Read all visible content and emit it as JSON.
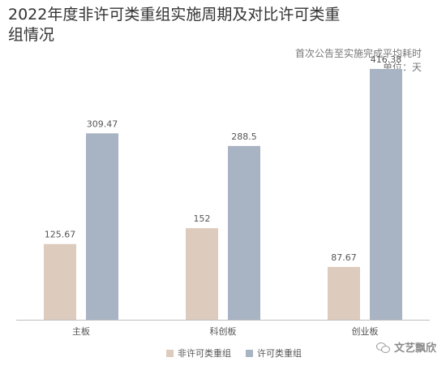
{
  "chart_data": {
    "type": "bar",
    "title": "2022年度非许可类重组实施周期及对比许可类重组情况",
    "subtitle": "首次公告至实施完成平均耗时",
    "unit_label": "单位：天",
    "categories": [
      "主板",
      "科创板",
      "创业板"
    ],
    "series": [
      {
        "name": "非许可类重组",
        "values": [
          125.67,
          152,
          87.67
        ],
        "labels": [
          "125.67",
          "152",
          "87.67"
        ],
        "color": "#ddcbbd"
      },
      {
        "name": "许可类重组",
        "values": [
          309.47,
          288.5,
          416.38
        ],
        "labels": [
          "309.47",
          "288.5",
          "416.38"
        ],
        "color": "#a8b3c3"
      }
    ],
    "ylim": [
      0,
      450
    ],
    "grid": false,
    "legend_position": "bottom"
  },
  "watermark": {
    "text": "文艺飘欣",
    "icon": "wechat-icon"
  }
}
